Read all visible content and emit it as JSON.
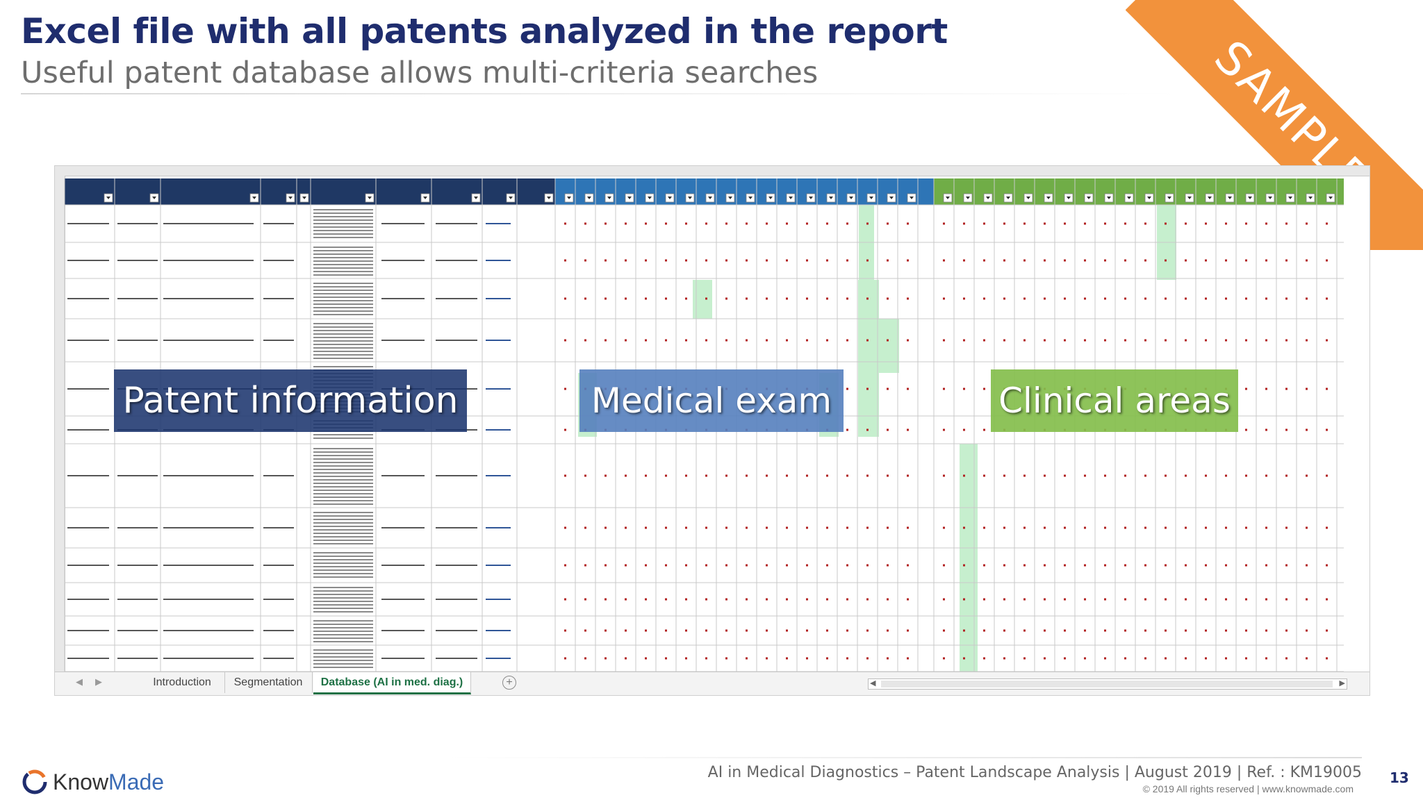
{
  "slide": {
    "title": "Excel file with all patents analyzed in the report",
    "subtitle": "Useful patent database allows multi-criteria searches",
    "watermark": "SAMPLE"
  },
  "spreadsheet": {
    "tabs": [
      {
        "label": "Introduction",
        "active": false
      },
      {
        "label": "Segmentation",
        "active": false
      },
      {
        "label": "Database (AI in med. diag.)",
        "active": true
      }
    ],
    "add_sheet_icon": "plus-circle-icon",
    "header_color": "#1f3864",
    "medical_header_color": "#2e75b6",
    "clinical_header_color": "#70ad47",
    "highlight_color": "#c6efce"
  },
  "overlays": {
    "patent_information": "Patent information",
    "medical_exam": "Medical exam",
    "clinical_areas": "Clinical areas"
  },
  "footer": {
    "logo_know": "Know",
    "logo_made": "Made",
    "report_line": "AI in Medical Diagnostics – Patent Landscape Analysis | August 2019 | Ref. : KM19005",
    "copyright": "© 2019  All rights reserved | www.knowmade.com",
    "page_number": "13"
  }
}
